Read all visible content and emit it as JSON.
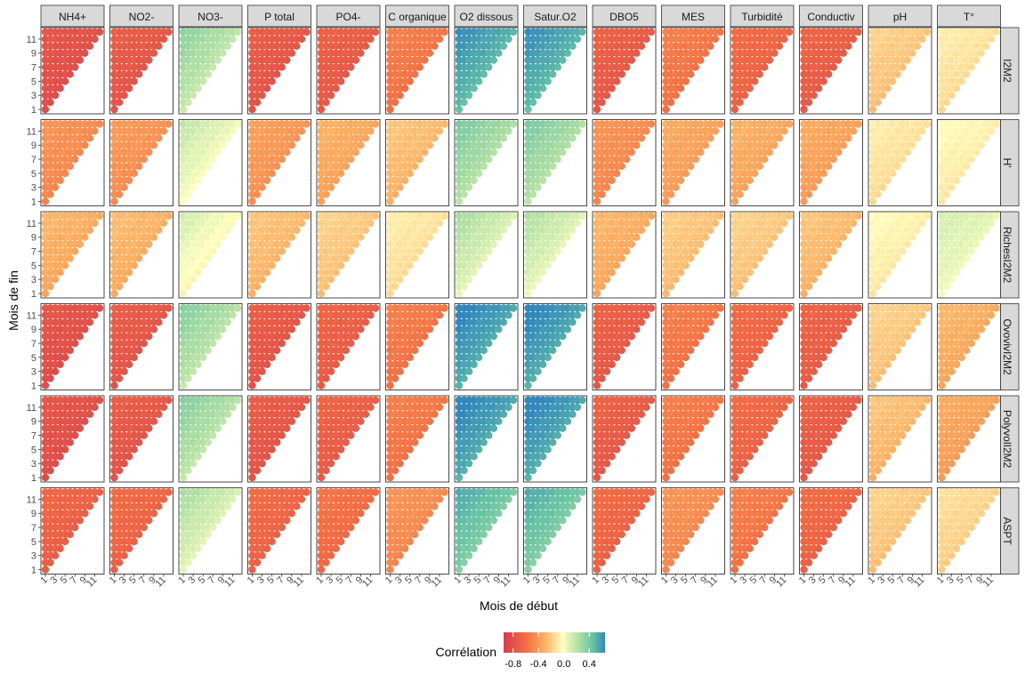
{
  "chart_data": {
    "type": "heatmap",
    "xlabel": "Mois de début",
    "ylabel": "Mois de fin",
    "x_ticks": [
      "1",
      "3",
      "5",
      "7",
      "9",
      "11"
    ],
    "y_ticks": [
      "1",
      "3",
      "5",
      "7",
      "9",
      "11"
    ],
    "x_range": [
      1,
      12
    ],
    "y_range": [
      1,
      12
    ],
    "columns": [
      "NH4+",
      "NO2-",
      "NO3-",
      "P total",
      "PO4-",
      "C organique",
      "O2 dissous",
      "Satur.O2",
      "DBO5",
      "MES",
      "Turbidité",
      "Conductiv",
      "pH",
      "T°"
    ],
    "rows": [
      "I2M2",
      "H'",
      "RichesI2M2",
      "OvovivI2M2",
      "PolyvolI2M2",
      "ASPT"
    ],
    "mean_correlation": [
      [
        -0.8,
        -0.75,
        0.2,
        -0.75,
        -0.72,
        -0.55,
        0.5,
        0.5,
        -0.72,
        -0.55,
        -0.65,
        -0.7,
        -0.2,
        -0.1
      ],
      [
        -0.45,
        -0.42,
        0.05,
        -0.4,
        -0.32,
        -0.25,
        0.25,
        0.25,
        -0.45,
        -0.35,
        -0.32,
        -0.35,
        -0.1,
        -0.05
      ],
      [
        -0.3,
        -0.28,
        0.0,
        -0.25,
        -0.2,
        -0.1,
        0.12,
        0.1,
        -0.3,
        -0.22,
        -0.2,
        -0.25,
        -0.05,
        0.08
      ],
      [
        -0.8,
        -0.75,
        0.22,
        -0.75,
        -0.7,
        -0.55,
        0.55,
        0.55,
        -0.72,
        -0.55,
        -0.65,
        -0.7,
        -0.2,
        -0.3
      ],
      [
        -0.8,
        -0.75,
        0.22,
        -0.75,
        -0.7,
        -0.55,
        0.55,
        0.55,
        -0.72,
        -0.55,
        -0.65,
        -0.72,
        -0.25,
        -0.35
      ],
      [
        -0.68,
        -0.65,
        0.12,
        -0.65,
        -0.6,
        -0.45,
        0.4,
        0.4,
        -0.65,
        -0.45,
        -0.55,
        -0.65,
        -0.2,
        -0.15
      ]
    ],
    "legend": {
      "title": "Corrélation",
      "labels": [
        "-0.8",
        "-0.4",
        "0.0",
        "0.4"
      ],
      "values": [
        -0.8,
        -0.4,
        0.0,
        0.4
      ],
      "range": [
        -0.95,
        0.65
      ],
      "placement": "bottom",
      "palette": "Spectral"
    },
    "grid": false
  }
}
